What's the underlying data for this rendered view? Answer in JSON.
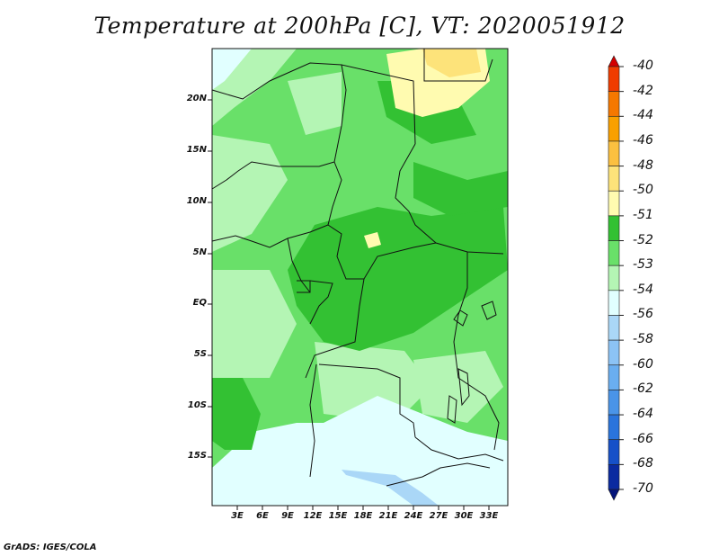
{
  "title": "Temperature at 200hPa [C], VT: 2020051912",
  "credit": "GrADS: IGES/COLA",
  "map": {
    "lat_ticks": [
      "20N",
      "15N",
      "10N",
      "5N",
      "EQ",
      "5S",
      "10S",
      "15S"
    ],
    "lon_ticks": [
      "3E",
      "6E",
      "9E",
      "12E",
      "15E",
      "18E",
      "21E",
      "24E",
      "27E",
      "30E",
      "33E"
    ]
  },
  "colorbar": {
    "labels": [
      "-40",
      "-42",
      "-44",
      "-46",
      "-48",
      "-50",
      "-51",
      "-52",
      "-53",
      "-54",
      "-56",
      "-58",
      "-60",
      "-62",
      "-64",
      "-66",
      "-68",
      "-70"
    ],
    "colors": [
      "#d30000",
      "#f03c00",
      "#f57800",
      "#f9a000",
      "#fbc040",
      "#fde37a",
      "#fffbb0",
      "#33c133",
      "#69e069",
      "#b4f5b4",
      "#e1ffff",
      "#aad7f7",
      "#8cc3f5",
      "#6aaef0",
      "#4a94e8",
      "#2a74dc",
      "#1650c8",
      "#0a2aa0",
      "#04147a"
    ]
  }
}
